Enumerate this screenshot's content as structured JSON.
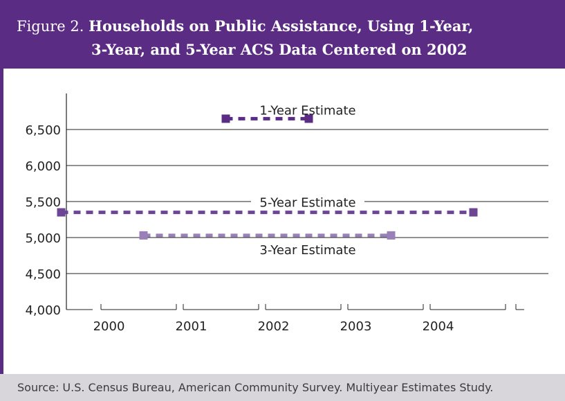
{
  "figure_label": "Figure 2.",
  "title_line1": "Households on Public Assistance, Using 1-Year,",
  "title_line2": "3-Year, and 5-Year ACS Data Centered on 2002",
  "source": "Source: U.S. Census Bureau, American Community Survey. Multiyear Estimates Study.",
  "colors": {
    "header": "#5b2c83",
    "footer": "#d9d6db",
    "one_year": "#5b2c83",
    "three_year": "#9a80b8",
    "five_year": "#6c4594"
  },
  "chart_data": {
    "type": "line",
    "title": "Households on Public Assistance, Using 1-Year, 3-Year, and 5-Year ACS Data Centered on 2002",
    "xlabel": "",
    "ylabel": "",
    "categories": [
      "2000",
      "2001",
      "2002",
      "2003",
      "2004"
    ],
    "ylim": [
      4000,
      7000
    ],
    "yticks": [
      4000,
      4500,
      5000,
      5500,
      6000,
      6500
    ],
    "ytick_labels": [
      "4,000",
      "4,500",
      "5,000",
      "5,500",
      "6,000",
      "6,500"
    ],
    "grid": true,
    "series": [
      {
        "name": "1-Year Estimate",
        "start": 2002,
        "end": 2002,
        "value": 6650,
        "color": "#5b2c83"
      },
      {
        "name": "5-Year Estimate",
        "start": 2000,
        "end": 2004,
        "value": 5350,
        "color": "#6c4594"
      },
      {
        "name": "3-Year Estimate",
        "start": 2001,
        "end": 2003,
        "value": 5030,
        "color": "#9a80b8"
      }
    ]
  }
}
